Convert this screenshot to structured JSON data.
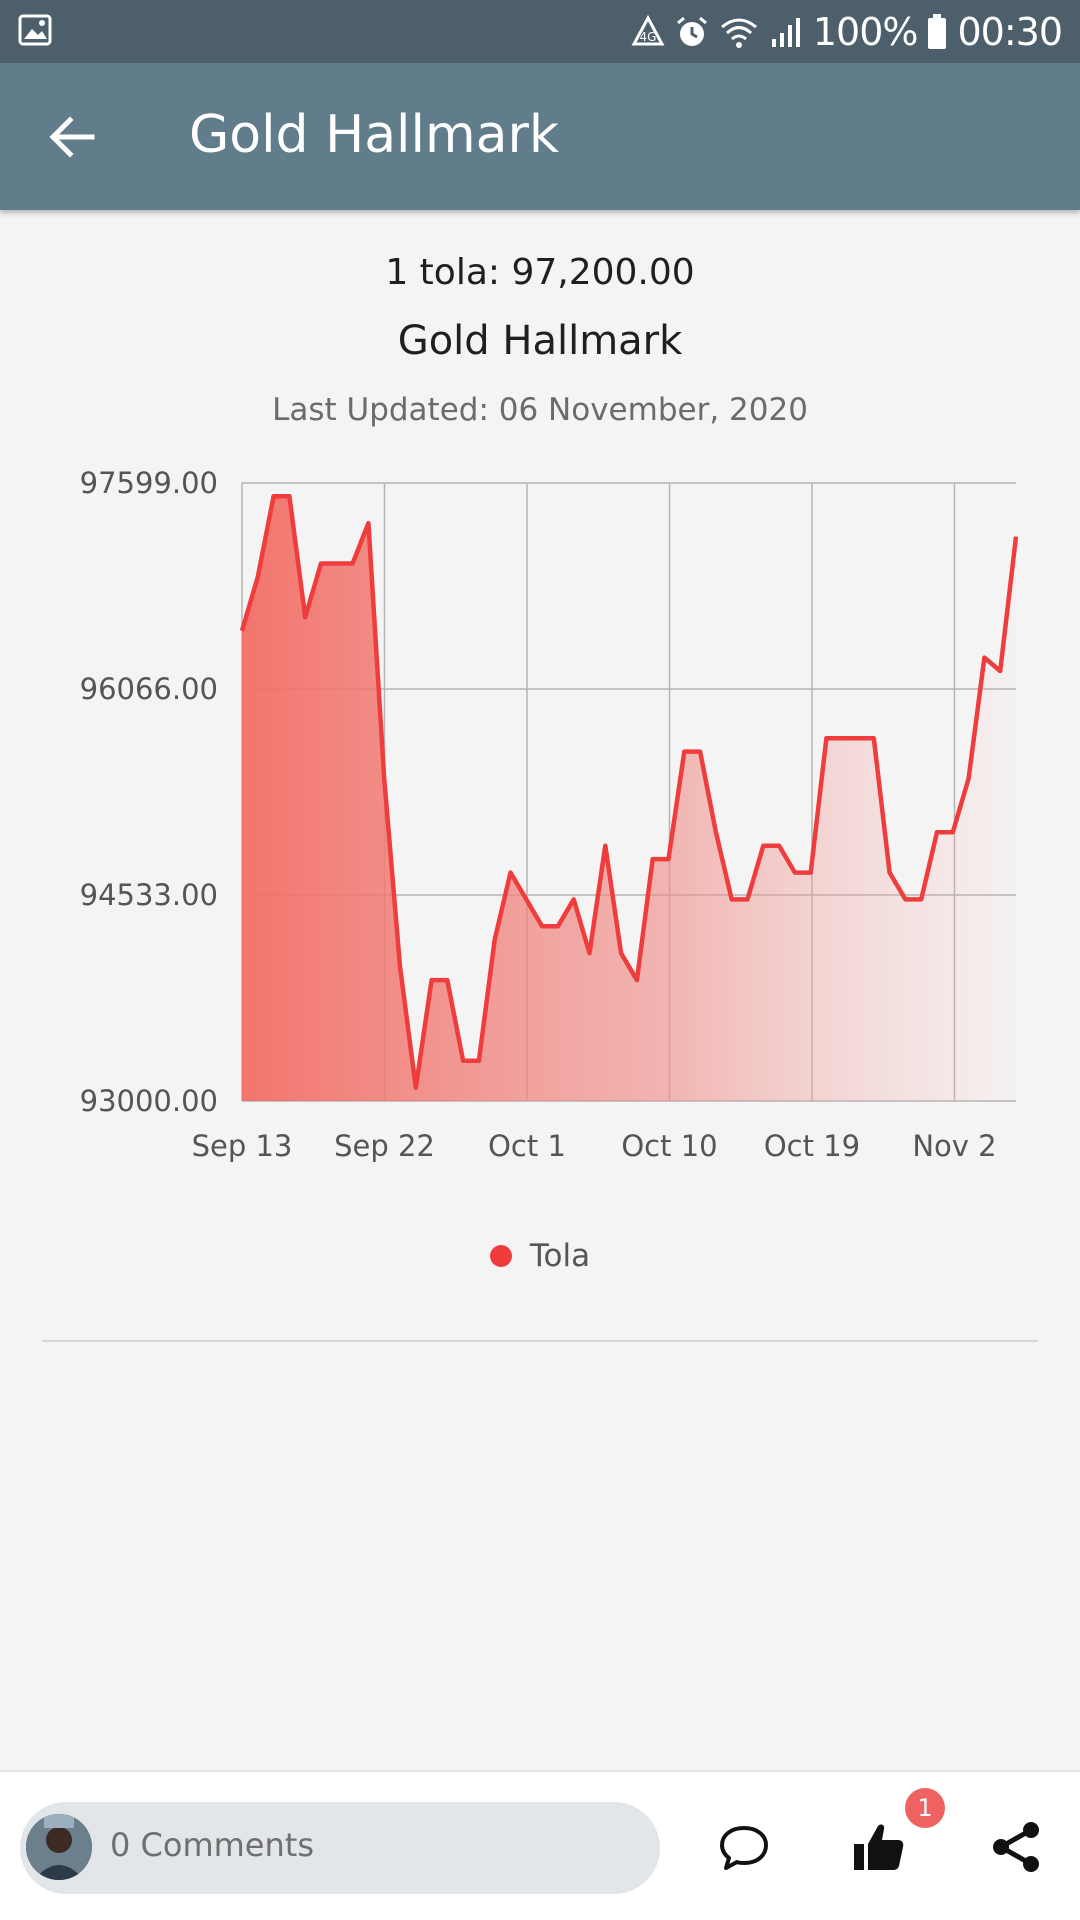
{
  "status_bar": {
    "battery_percent": "100%",
    "time": "00:30",
    "icons": [
      "gallery-icon",
      "data-saver-icon",
      "alarm-icon",
      "wifi-icon",
      "signal-icon",
      "battery-icon"
    ]
  },
  "app_bar": {
    "title": "Gold Hallmark",
    "back_icon": "arrow-back-icon"
  },
  "header": {
    "price_line": "1 tola: 97,200.00",
    "chart_title": "Gold Hallmark",
    "last_updated": "Last Updated: 06 November, 2020"
  },
  "chart_data": {
    "type": "area",
    "title": "Gold Hallmark",
    "xlabel": "",
    "ylabel": "",
    "y_ticks": [
      "97599.00",
      "96066.00",
      "94533.00",
      "93000.00"
    ],
    "ylim": [
      93000,
      97599
    ],
    "x_ticks": [
      "Sep 13",
      "Sep 22",
      "Oct 1",
      "Oct 10",
      "Oct 19",
      "Nov 2"
    ],
    "series": [
      {
        "name": "Tola",
        "color": "#ef3d3d",
        "values": [
          96500,
          96900,
          97500,
          97500,
          96600,
          97000,
          97000,
          97000,
          97300,
          95400,
          94000,
          93100,
          93900,
          93900,
          93300,
          93300,
          94200,
          94700,
          94500,
          94300,
          94300,
          94500,
          94100,
          94900,
          94100,
          93900,
          94800,
          94800,
          95600,
          95600,
          95000,
          94500,
          94500,
          94900,
          94900,
          94700,
          94700,
          95700,
          95700,
          95700,
          95700,
          94700,
          94500,
          94500,
          95000,
          95000,
          95400,
          96300,
          96200,
          97200
        ]
      }
    ],
    "legend": "bottom"
  },
  "legend": {
    "label": "Tola",
    "color": "#ef3d3d"
  },
  "bottom_bar": {
    "comments_label": "0 Comments",
    "like_count": "1"
  }
}
